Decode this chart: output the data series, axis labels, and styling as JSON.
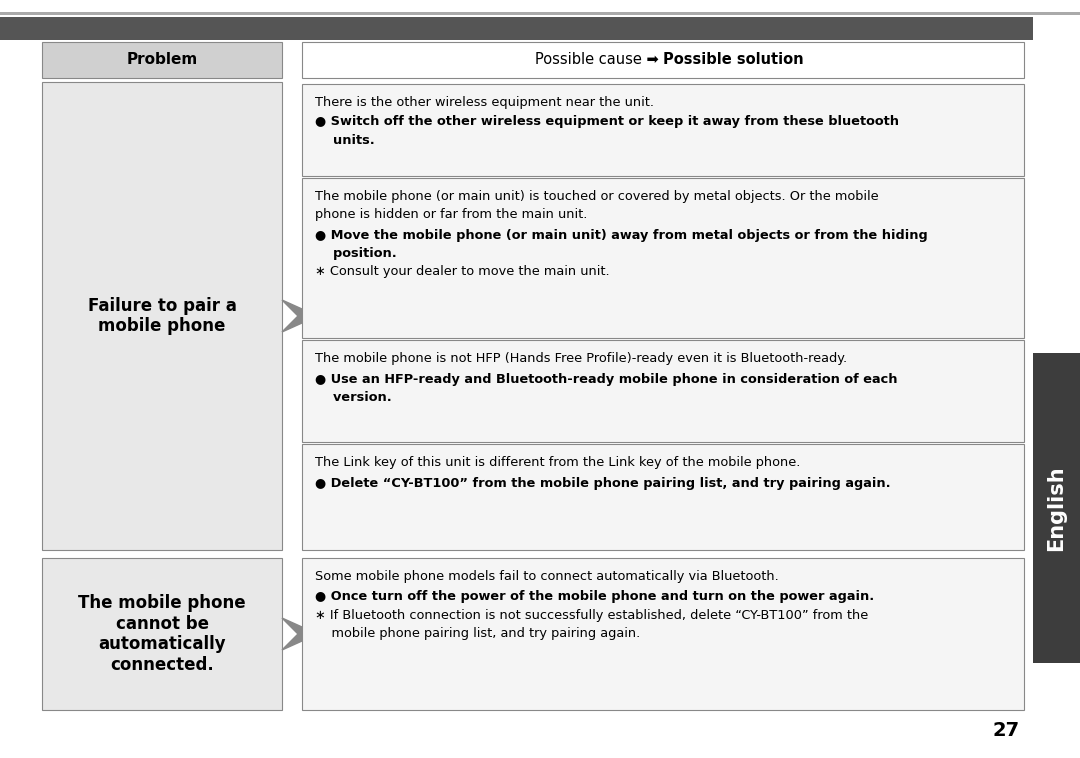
{
  "bg_color": "#ffffff",
  "tab_color": "#3d3d3d",
  "tab_text": "English",
  "header_bar_color": "#5a5a5a",
  "problem_header_bg": "#d0d0d0",
  "problem_header_text": "Problem",
  "left_cell_bg": "#e8e8e8",
  "right_cell_bg": "#f5f5f5",
  "problem1_text": "Failure to pair a\nmobile phone",
  "problem2_text": "The mobile phone\ncannot be\nautomatically\nconnected.",
  "box1_cause": "There is the other wireless equipment near the unit.",
  "box1_sol1": "● Switch off the other wireless equipment or keep it away from these bluetooth",
  "box1_sol2": "    units.",
  "box2_cause1": "The mobile phone (or main unit) is touched or covered by metal objects. Or the mobile",
  "box2_cause2": "phone is hidden or far from the main unit.",
  "box2_sol1": "● Move the mobile phone (or main unit) away from metal objects or from the hiding",
  "box2_sol2": "    position.",
  "box2_sol3": "∗ Consult your dealer to move the main unit.",
  "box3_cause": "The mobile phone is not HFP (Hands Free Profile)-ready even it is Bluetooth-ready.",
  "box3_sol1": "● Use an HFP-ready and Bluetooth-ready mobile phone in consideration of each",
  "box3_sol2": "    version.",
  "box4_cause": "The Link key of this unit is different from the Link key of the mobile phone.",
  "box4_sol1": "● Delete “CY-BT100” from the mobile phone pairing list, and try pairing again.",
  "box5_cause": "Some mobile phone models fail to connect automatically via Bluetooth.",
  "box5_sol1": "● Once turn off the power of the mobile phone and turn on the power again.",
  "box5_sol2": "∗ If Bluetooth connection is not successfully established, delete “CY-BT100” from the",
  "box5_sol3": "    mobile phone pairing list, and try pairing again.",
  "page_number": "27",
  "arrow_color": "#888888"
}
